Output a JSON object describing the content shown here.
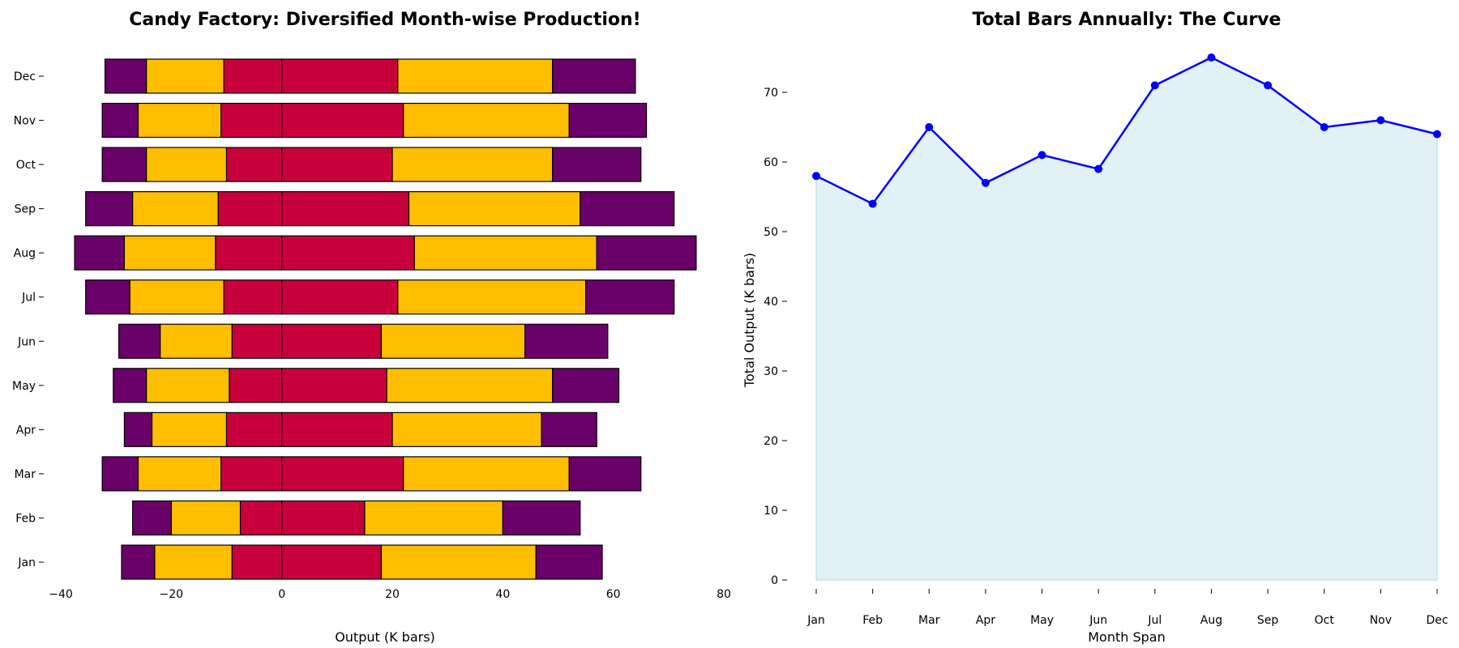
{
  "colors": {
    "purple": "#6a0069",
    "gold": "#ffbe00",
    "crimson": "#c8003b",
    "line": "#0000ff",
    "area": "#add8e6"
  },
  "chart_data": [
    {
      "type": "bar",
      "orientation": "horizontal",
      "stacked": "diverging",
      "title": "Candy Factory: Diversified Month-wise Production!",
      "xlabel": "Output (K bars)",
      "ylabel": "",
      "xlim": [
        -40,
        80
      ],
      "xticks": [
        -40,
        -20,
        0,
        20,
        40,
        60,
        80
      ],
      "xtick_labels": [
        "−40",
        "−20",
        "0",
        "20",
        "40",
        "60",
        "80"
      ],
      "categories": [
        "Jan",
        "Feb",
        "Mar",
        "Apr",
        "May",
        "Jun",
        "Jul",
        "Aug",
        "Sep",
        "Oct",
        "Nov",
        "Dec"
      ],
      "segments": [
        {
          "color": "purple",
          "values": [
            [
              -29,
              -23
            ],
            [
              -27,
              -20
            ],
            [
              -32.5,
              -26
            ],
            [
              -28.5,
              -23.5
            ],
            [
              -30.5,
              -24.5
            ],
            [
              -29.5,
              -22
            ],
            [
              -35.5,
              -27.5
            ],
            [
              -37.5,
              -28.5
            ],
            [
              -35.5,
              -27
            ],
            [
              -32.5,
              -24.5
            ],
            [
              -32.5,
              -26
            ],
            [
              -32,
              -24.5
            ]
          ]
        },
        {
          "color": "gold",
          "values": [
            [
              -23,
              -9
            ],
            [
              -20,
              -7.5
            ],
            [
              -26,
              -11
            ],
            [
              -23.5,
              -10
            ],
            [
              -24.5,
              -9.5
            ],
            [
              -22,
              -9
            ],
            [
              -27.5,
              -10.5
            ],
            [
              -28.5,
              -12
            ],
            [
              -27,
              -11.5
            ],
            [
              -24.5,
              -10
            ],
            [
              -26,
              -11
            ],
            [
              -24.5,
              -10.5
            ]
          ]
        },
        {
          "color": "crimson",
          "values": [
            [
              -9,
              0
            ],
            [
              -7.5,
              0
            ],
            [
              -11,
              0
            ],
            [
              -10,
              0
            ],
            [
              -9.5,
              0
            ],
            [
              -9,
              0
            ],
            [
              -10.5,
              0
            ],
            [
              -12,
              0
            ],
            [
              -11.5,
              0
            ],
            [
              -10,
              0
            ],
            [
              -11,
              0
            ],
            [
              -10.5,
              0
            ]
          ]
        },
        {
          "color": "crimson",
          "values": [
            [
              0,
              18
            ],
            [
              0,
              15
            ],
            [
              0,
              22
            ],
            [
              0,
              20
            ],
            [
              0,
              19
            ],
            [
              0,
              18
            ],
            [
              0,
              21
            ],
            [
              0,
              24
            ],
            [
              0,
              23
            ],
            [
              0,
              20
            ],
            [
              0,
              22
            ],
            [
              0,
              21
            ]
          ]
        },
        {
          "color": "gold",
          "values": [
            [
              18,
              46
            ],
            [
              15,
              40
            ],
            [
              22,
              52
            ],
            [
              20,
              47
            ],
            [
              19,
              49
            ],
            [
              18,
              44
            ],
            [
              21,
              55
            ],
            [
              24,
              57
            ],
            [
              23,
              54
            ],
            [
              20,
              49
            ],
            [
              22,
              52
            ],
            [
              21,
              49
            ]
          ]
        },
        {
          "color": "purple",
          "values": [
            [
              46,
              58
            ],
            [
              40,
              54
            ],
            [
              52,
              65
            ],
            [
              47,
              57
            ],
            [
              49,
              61
            ],
            [
              44,
              59
            ],
            [
              55,
              71
            ],
            [
              57,
              75
            ],
            [
              54,
              71
            ],
            [
              49,
              65
            ],
            [
              52,
              66
            ],
            [
              49,
              64
            ]
          ]
        }
      ]
    },
    {
      "type": "area",
      "title": "Total Bars Annually: The Curve",
      "xlabel": "Month Span",
      "ylabel": "Total Output (K bars)",
      "ylim": [
        0,
        78
      ],
      "yticks": [
        0,
        10,
        20,
        30,
        40,
        50,
        60,
        70
      ],
      "categories": [
        "Jan",
        "Feb",
        "Mar",
        "Apr",
        "May",
        "Jun",
        "Jul",
        "Aug",
        "Sep",
        "Oct",
        "Nov",
        "Dec"
      ],
      "values": [
        58,
        54,
        65,
        57,
        61,
        59,
        71,
        75,
        71,
        65,
        66,
        64
      ]
    }
  ]
}
